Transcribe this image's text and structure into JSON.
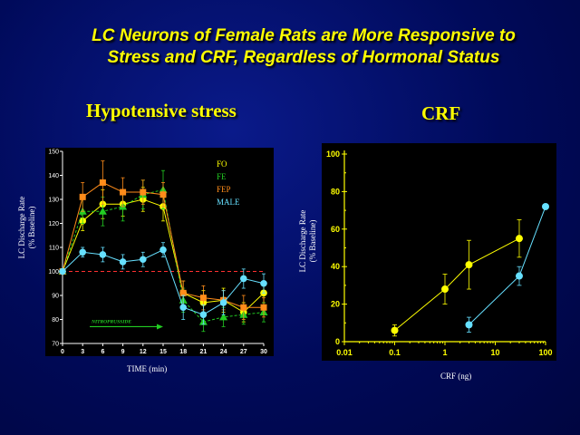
{
  "slide": {
    "title_line1": "LC Neurons of Female Rats are More Responsive to",
    "title_line2": "Stress and CRF, Regardless of Hormonal Status"
  },
  "chart_data": [
    {
      "type": "line",
      "title": "Hypotensive stress",
      "xlabel": "TIME (min)",
      "ylabel": "LC Discharge Rate (% Baseline)",
      "ylabel_line1": "LC Discharge Rate",
      "ylabel_line2": "(% Baseline)",
      "x": [
        0,
        3,
        6,
        9,
        12,
        15,
        18,
        21,
        24,
        27,
        30
      ],
      "xticks": [
        0,
        3,
        6,
        9,
        12,
        15,
        18,
        21,
        24,
        27,
        30
      ],
      "yticks": [
        70,
        80,
        90,
        100,
        110,
        120,
        130,
        140,
        150
      ],
      "xlim": [
        0,
        30
      ],
      "ylim": [
        70,
        150
      ],
      "baseline": 100,
      "annotation": "NITROPRUSSIDE",
      "annotation_span": [
        0,
        15
      ],
      "legend_position": "top-right",
      "series": [
        {
          "name": "FO",
          "color": "#ffff00",
          "marker": "circle",
          "values": [
            100,
            121,
            128,
            128,
            130,
            127,
            91,
            87,
            88,
            83,
            91
          ]
        },
        {
          "name": "FE",
          "color": "#22cc22",
          "marker": "triangle",
          "values": [
            100,
            125,
            125,
            127,
            132,
            134,
            88,
            79,
            81,
            82,
            83
          ]
        },
        {
          "name": "FEP",
          "color": "#ff8c1a",
          "marker": "square",
          "values": [
            100,
            131,
            137,
            133,
            133,
            132,
            91,
            89,
            88,
            85,
            85
          ]
        },
        {
          "name": "MALE",
          "color": "#66e0ff",
          "marker": "circle",
          "values": [
            100,
            108,
            107,
            104,
            105,
            109,
            85,
            82,
            87,
            97,
            95
          ]
        }
      ],
      "errors": [
        [
          0,
          4,
          6,
          5,
          5,
          6,
          5,
          5,
          5,
          4,
          4
        ],
        [
          0,
          5,
          6,
          6,
          6,
          8,
          5,
          4,
          4,
          4,
          4
        ],
        [
          0,
          6,
          9,
          6,
          5,
          5,
          5,
          5,
          4,
          5,
          4
        ],
        [
          0,
          2,
          3,
          3,
          3,
          3,
          5,
          4,
          5,
          4,
          4
        ]
      ]
    },
    {
      "type": "line",
      "title": "CRF",
      "xlabel": "CRF (ng)",
      "ylabel": "LC Discharge Rate (% Baseline)",
      "ylabel_line1": "LC Discharge Rate",
      "ylabel_line2": "(% Baseline)",
      "xscale": "log",
      "xticks": [
        0.01,
        0.1,
        1,
        10,
        100
      ],
      "xtick_labels": [
        "0.01",
        "0.1",
        "1",
        "10",
        "100"
      ],
      "yticks": [
        0,
        20,
        40,
        60,
        80,
        100
      ],
      "xlim": [
        0.01,
        100
      ],
      "ylim": [
        0,
        100
      ],
      "series": [
        {
          "name": "",
          "color": "#ffff00",
          "marker": "circle",
          "x": [
            0.1,
            1,
            3,
            30
          ],
          "values": [
            6,
            28,
            41,
            55
          ],
          "errors": [
            3,
            8,
            13,
            10
          ]
        },
        {
          "name": "",
          "color": "#66e0ff",
          "marker": "circle",
          "x": [
            3,
            30,
            100
          ],
          "values": [
            9,
            35,
            72
          ],
          "errors": [
            4,
            5,
            0
          ]
        }
      ]
    }
  ]
}
